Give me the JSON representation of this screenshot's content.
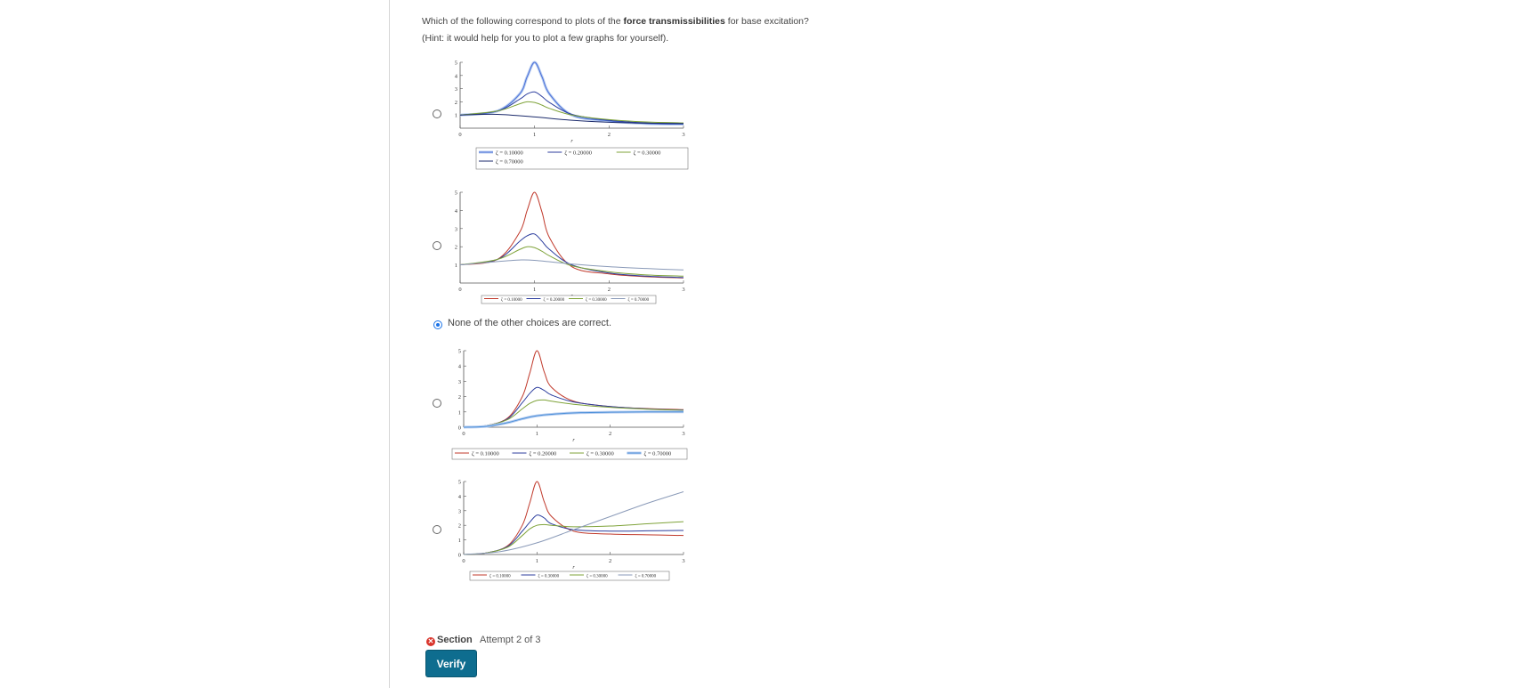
{
  "question": {
    "prefix": "Which of the following correspond to plots of the ",
    "bold": "force transmissibilities",
    "suffix": " for base excitation?",
    "hint": "(Hint: it would help for you to plot a few graphs for yourself)."
  },
  "choices": [
    {
      "selected": false,
      "plot": 0
    },
    {
      "selected": false,
      "plot": 1
    },
    {
      "selected": true,
      "text": "None of the other choices are correct."
    },
    {
      "selected": false,
      "plot": 2
    },
    {
      "selected": false,
      "plot": 3
    }
  ],
  "section": {
    "label": "Section",
    "attempt": "Attempt 2 of 3",
    "verify_label": "Verify"
  },
  "colors": {
    "zeta_0_1": "#c0392b",
    "zeta_0_2": "#2c3e9e",
    "zeta_0_3": "#7fa33a",
    "zeta_0_7": "#4a90d9",
    "accent": "#1a73e8",
    "button": "#0e6d8f"
  },
  "chart_data": [
    {
      "type": "line",
      "x_label": "r",
      "xlim": [
        0,
        3
      ],
      "ylim": [
        0,
        5
      ],
      "x_ticks": [
        "0",
        "1",
        "2",
        "3"
      ],
      "y_ticks": [
        "1",
        "2",
        "3",
        "4",
        "5"
      ],
      "legend_style": "two-row",
      "series": [
        {
          "name": "ζ = 0.10000",
          "color": "#4a6fd9",
          "halo": true,
          "points": [
            [
              0,
              1
            ],
            [
              0.5,
              1.3
            ],
            [
              0.8,
              2.6
            ],
            [
              0.9,
              3.9
            ],
            [
              1,
              5
            ],
            [
              1.1,
              3.9
            ],
            [
              1.2,
              2.6
            ],
            [
              1.5,
              1
            ],
            [
              2,
              0.55
            ],
            [
              2.5,
              0.35
            ],
            [
              3,
              0.3
            ]
          ]
        },
        {
          "name": "ζ = 0.20000",
          "color": "#2c3e9e",
          "points": [
            [
              0,
              1
            ],
            [
              0.5,
              1.3
            ],
            [
              0.8,
              2.2
            ],
            [
              0.9,
              2.6
            ],
            [
              1,
              2.75
            ],
            [
              1.1,
              2.4
            ],
            [
              1.2,
              1.95
            ],
            [
              1.5,
              1.05
            ],
            [
              2,
              0.6
            ],
            [
              2.5,
              0.4
            ],
            [
              3,
              0.35
            ]
          ]
        },
        {
          "name": "ζ = 0.30000",
          "color": "#7fa33a",
          "points": [
            [
              0,
              1
            ],
            [
              0.5,
              1.3
            ],
            [
              0.8,
              1.85
            ],
            [
              0.9,
              2
            ],
            [
              1,
              1.95
            ],
            [
              1.1,
              1.75
            ],
            [
              1.2,
              1.5
            ],
            [
              1.5,
              1
            ],
            [
              2,
              0.65
            ],
            [
              2.5,
              0.47
            ],
            [
              3,
              0.4
            ]
          ]
        },
        {
          "name": "ζ = 0.70000",
          "color": "#1b2a6b",
          "points": [
            [
              0,
              1
            ],
            [
              0.5,
              1.05
            ],
            [
              1,
              0.85
            ],
            [
              1.5,
              0.6
            ],
            [
              2,
              0.45
            ],
            [
              2.5,
              0.38
            ],
            [
              3,
              0.35
            ]
          ]
        }
      ]
    },
    {
      "type": "line",
      "x_label": "r",
      "xlim": [
        0,
        3
      ],
      "ylim": [
        0,
        5
      ],
      "x_ticks": [
        "0",
        "1",
        "2",
        "3"
      ],
      "y_ticks": [
        "1",
        "2",
        "3",
        "4",
        "5"
      ],
      "legend_style": "one-row",
      "series": [
        {
          "name": "ζ = 0.10000",
          "color": "#c0392b",
          "points": [
            [
              0,
              1
            ],
            [
              0.5,
              1.3
            ],
            [
              0.8,
              2.8
            ],
            [
              0.9,
              4
            ],
            [
              1,
              5
            ],
            [
              1.1,
              3.9
            ],
            [
              1.2,
              2.5
            ],
            [
              1.5,
              0.9
            ],
            [
              2,
              0.5
            ],
            [
              2.5,
              0.35
            ],
            [
              3,
              0.28
            ]
          ]
        },
        {
          "name": "ζ = 0.20000",
          "color": "#2c3e9e",
          "points": [
            [
              0,
              1
            ],
            [
              0.5,
              1.3
            ],
            [
              0.8,
              2.3
            ],
            [
              0.9,
              2.6
            ],
            [
              1,
              2.7
            ],
            [
              1.1,
              2.3
            ],
            [
              1.2,
              1.85
            ],
            [
              1.5,
              1
            ],
            [
              2,
              0.55
            ],
            [
              2.5,
              0.38
            ],
            [
              3,
              0.3
            ]
          ]
        },
        {
          "name": "ζ = 0.30000",
          "color": "#7fa33a",
          "points": [
            [
              0,
              1
            ],
            [
              0.5,
              1.3
            ],
            [
              0.8,
              1.85
            ],
            [
              0.9,
              2
            ],
            [
              1,
              1.95
            ],
            [
              1.1,
              1.75
            ],
            [
              1.2,
              1.5
            ],
            [
              1.5,
              0.95
            ],
            [
              2,
              0.62
            ],
            [
              2.5,
              0.45
            ],
            [
              3,
              0.38
            ]
          ]
        },
        {
          "name": "ζ = 0.70000",
          "color": "#8a9ab8",
          "points": [
            [
              0,
              1
            ],
            [
              0.5,
              1.18
            ],
            [
              0.8,
              1.27
            ],
            [
              1,
              1.25
            ],
            [
              1.5,
              1.05
            ],
            [
              2,
              0.9
            ],
            [
              2.5,
              0.8
            ],
            [
              3,
              0.72
            ]
          ]
        }
      ]
    },
    {
      "type": "line",
      "x_label": "r",
      "xlim": [
        0,
        3
      ],
      "ylim": [
        0,
        5
      ],
      "x_ticks": [
        "0",
        "1",
        "2",
        "3"
      ],
      "y_ticks": [
        "0",
        "1",
        "2",
        "3",
        "4",
        "5"
      ],
      "legend_style": "one-row",
      "series": [
        {
          "name": "ζ = 0.10000",
          "color": "#c0392b",
          "points": [
            [
              0,
              0
            ],
            [
              0.3,
              0.1
            ],
            [
              0.6,
              0.6
            ],
            [
              0.8,
              2
            ],
            [
              0.9,
              3.5
            ],
            [
              1,
              5
            ],
            [
              1.1,
              3.6
            ],
            [
              1.2,
              2.6
            ],
            [
              1.5,
              1.7
            ],
            [
              2,
              1.35
            ],
            [
              2.5,
              1.22
            ],
            [
              3,
              1.15
            ]
          ]
        },
        {
          "name": "ζ = 0.20000",
          "color": "#2c3e9e",
          "points": [
            [
              0,
              0
            ],
            [
              0.3,
              0.1
            ],
            [
              0.6,
              0.55
            ],
            [
              0.8,
              1.6
            ],
            [
              0.9,
              2.2
            ],
            [
              1,
              2.6
            ],
            [
              1.1,
              2.4
            ],
            [
              1.2,
              2.1
            ],
            [
              1.5,
              1.65
            ],
            [
              2,
              1.35
            ],
            [
              2.5,
              1.2
            ],
            [
              3,
              1.12
            ]
          ]
        },
        {
          "name": "ζ = 0.30000",
          "color": "#7fa33a",
          "points": [
            [
              0,
              0
            ],
            [
              0.3,
              0.1
            ],
            [
              0.6,
              0.5
            ],
            [
              0.8,
              1.2
            ],
            [
              0.9,
              1.55
            ],
            [
              1,
              1.75
            ],
            [
              1.1,
              1.78
            ],
            [
              1.2,
              1.7
            ],
            [
              1.5,
              1.5
            ],
            [
              2,
              1.3
            ],
            [
              2.5,
              1.18
            ],
            [
              3,
              1.1
            ]
          ]
        },
        {
          "name": "ζ = 0.70000",
          "color": "#4a90d9",
          "halo": true,
          "points": [
            [
              0,
              0
            ],
            [
              0.3,
              0.05
            ],
            [
              0.6,
              0.3
            ],
            [
              0.8,
              0.55
            ],
            [
              1,
              0.75
            ],
            [
              1.3,
              0.88
            ],
            [
              1.6,
              0.95
            ],
            [
              2,
              0.98
            ],
            [
              2.5,
              1
            ],
            [
              3,
              1
            ]
          ]
        }
      ]
    },
    {
      "type": "line",
      "x_label": "r",
      "xlim": [
        0,
        3
      ],
      "ylim": [
        0,
        5
      ],
      "x_ticks": [
        "0",
        "1",
        "2",
        "3"
      ],
      "y_ticks": [
        "0",
        "1",
        "2",
        "3",
        "4",
        "5"
      ],
      "legend_style": "one-row",
      "series": [
        {
          "name": "ζ = 0.10000",
          "color": "#c0392b",
          "points": [
            [
              0,
              0
            ],
            [
              0.3,
              0.1
            ],
            [
              0.6,
              0.6
            ],
            [
              0.8,
              2
            ],
            [
              0.9,
              3.5
            ],
            [
              1,
              5
            ],
            [
              1.1,
              3.6
            ],
            [
              1.2,
              2.6
            ],
            [
              1.5,
              1.6
            ],
            [
              2,
              1.4
            ],
            [
              2.5,
              1.35
            ],
            [
              3,
              1.3
            ]
          ]
        },
        {
          "name": "ζ = 0.30000",
          "color": "#2c3e9e",
          "points": [
            [
              0,
              0
            ],
            [
              0.3,
              0.1
            ],
            [
              0.6,
              0.55
            ],
            [
              0.8,
              1.6
            ],
            [
              0.9,
              2.2
            ],
            [
              1,
              2.7
            ],
            [
              1.1,
              2.5
            ],
            [
              1.2,
              2.1
            ],
            [
              1.5,
              1.7
            ],
            [
              2,
              1.6
            ],
            [
              2.5,
              1.62
            ],
            [
              3,
              1.65
            ]
          ]
        },
        {
          "name": "ζ = 0.30000",
          "color": "#7fa33a",
          "points": [
            [
              0,
              0
            ],
            [
              0.3,
              0.1
            ],
            [
              0.6,
              0.5
            ],
            [
              0.8,
              1.3
            ],
            [
              0.9,
              1.75
            ],
            [
              1,
              2
            ],
            [
              1.1,
              2.05
            ],
            [
              1.2,
              2
            ],
            [
              1.5,
              1.9
            ],
            [
              2,
              1.95
            ],
            [
              2.5,
              2.1
            ],
            [
              3,
              2.25
            ]
          ]
        },
        {
          "name": "ζ = 0.70000",
          "color": "#8a9ab8",
          "points": [
            [
              0,
              0
            ],
            [
              0.5,
              0.2
            ],
            [
              1,
              0.8
            ],
            [
              1.5,
              1.7
            ],
            [
              2,
              2.6
            ],
            [
              2.5,
              3.5
            ],
            [
              3,
              4.3
            ]
          ]
        }
      ]
    }
  ]
}
